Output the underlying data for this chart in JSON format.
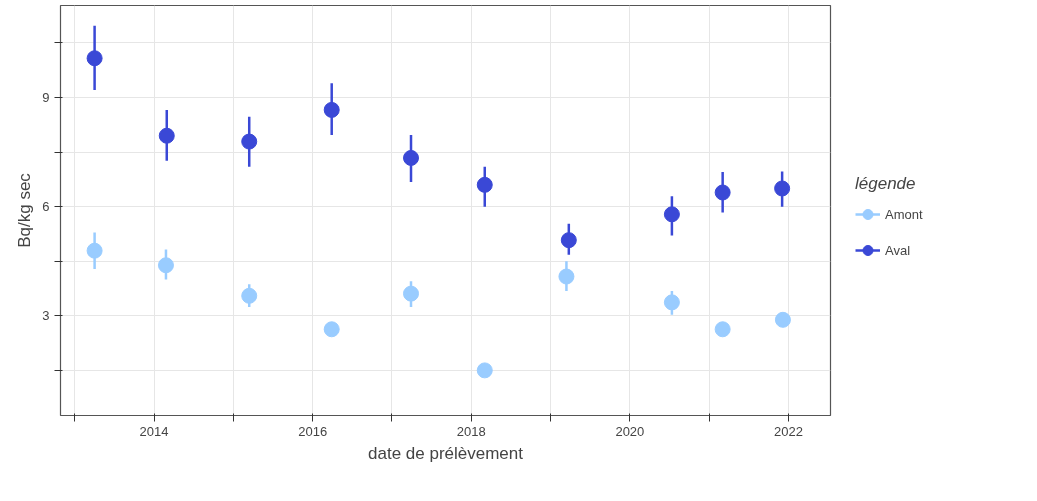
{
  "chart_data": {
    "type": "scatter",
    "xlabel": "date de prélèvement",
    "ylabel": "Bq/kg sec",
    "legend_title": "légende",
    "legend": "right",
    "grid": true,
    "marker": "circle",
    "xlim": [
      2012.82,
      2022.53
    ],
    "ylim": [
      0.26,
      11.53
    ],
    "xticks": [
      {
        "value": 2013,
        "label": null
      },
      2014,
      {
        "value": 2015,
        "label": null
      },
      2016,
      {
        "value": 2017,
        "label": null
      },
      2018,
      {
        "value": 2019,
        "label": null
      },
      2020,
      {
        "value": 2021,
        "label": null
      },
      2022
    ],
    "yticks": [
      {
        "value": 1.5,
        "label": null
      },
      3,
      {
        "value": 4.5,
        "label": null
      },
      6,
      {
        "value": 7.5,
        "label": null
      },
      9,
      {
        "value": 10.5,
        "label": null
      }
    ],
    "series": [
      {
        "name": "Amont",
        "color": "#99ccff",
        "x": [
          2013.25,
          2014.15,
          2015.2,
          2016.24,
          2017.24,
          2018.17,
          2019.2,
          2020.53,
          2021.17,
          2021.93
        ],
        "values": [
          4.79,
          4.39,
          3.55,
          2.63,
          3.61,
          1.5,
          4.08,
          3.37,
          2.63,
          2.89
        ],
        "errors": [
          [
            4.29,
            5.29
          ],
          [
            4.0,
            4.82
          ],
          [
            3.24,
            3.87
          ],
          null,
          [
            3.24,
            3.95
          ],
          null,
          [
            3.68,
            4.5
          ],
          [
            3.03,
            3.68
          ],
          null,
          null
        ]
      },
      {
        "name": "Aval",
        "color": "#3a48d6",
        "x": [
          2013.25,
          2014.16,
          2015.2,
          2016.24,
          2017.24,
          2018.17,
          2019.23,
          2020.53,
          2021.17,
          2021.92
        ],
        "values": [
          10.08,
          7.95,
          7.79,
          8.66,
          7.34,
          6.6,
          5.08,
          5.79,
          6.39,
          6.5
        ],
        "errors": [
          [
            9.21,
            10.97
          ],
          [
            7.26,
            8.66
          ],
          [
            7.1,
            8.47
          ],
          [
            7.97,
            9.39
          ],
          [
            6.68,
            7.97
          ],
          [
            6.0,
            7.1
          ],
          [
            4.68,
            5.53
          ],
          [
            5.21,
            6.29
          ],
          [
            5.84,
            6.95
          ],
          [
            6.0,
            6.97
          ]
        ]
      }
    ]
  }
}
